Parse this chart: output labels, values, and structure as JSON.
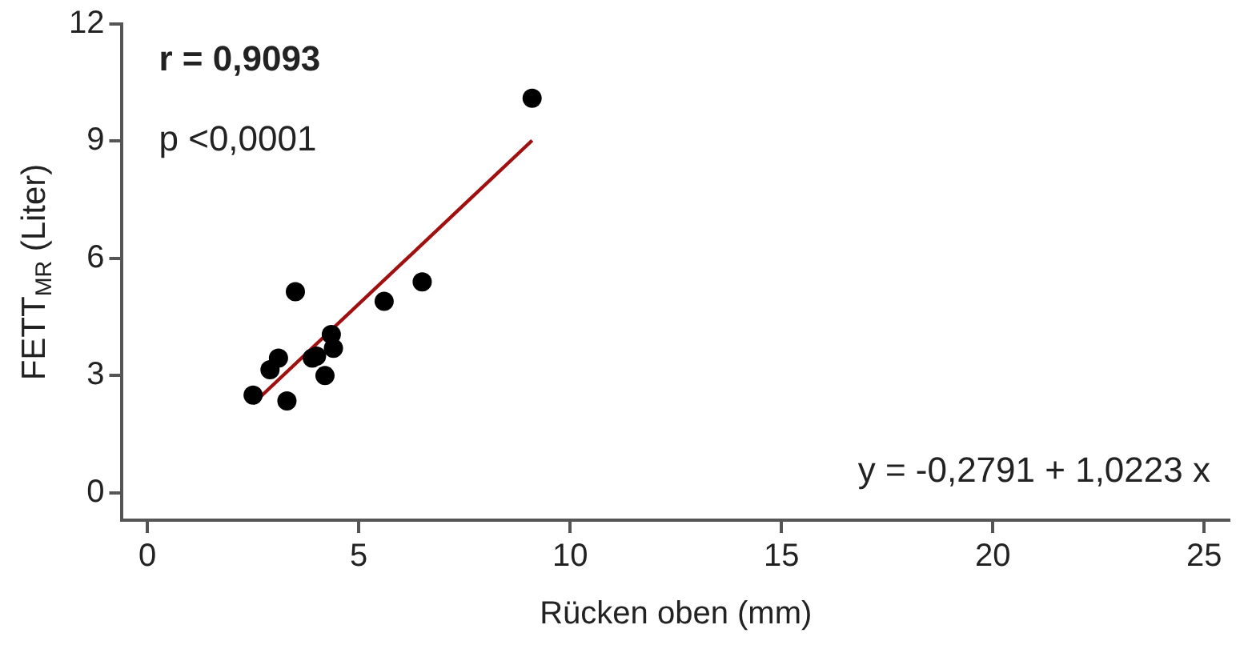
{
  "chart_data": {
    "type": "scatter",
    "xlabel": "Rücken oben (mm)",
    "ylabel": "FETT$_{MR}$ (Liter)",
    "annotations": [
      "r = 0,9093",
      "p <0,0001",
      "y = -0,2791 + 1,0223 x"
    ],
    "xlim": [
      -0.6,
      25.6
    ],
    "xticks": [
      0,
      5,
      10,
      15,
      20,
      25
    ],
    "ylim": [
      -0.7,
      12
    ],
    "yticks": [
      0,
      3,
      6,
      9,
      12
    ],
    "grid": false,
    "legend": false,
    "marker": "circle",
    "series": [
      {
        "color": "#000000",
        "x": [
          2.5,
          2.9,
          3.1,
          3.3,
          3.5,
          3.9,
          4.0,
          4.2,
          4.35,
          4.4,
          5.6,
          6.5,
          9.1
        ],
        "values": [
          2.5,
          3.15,
          3.45,
          2.35,
          5.15,
          3.45,
          3.5,
          3.0,
          4.05,
          3.7,
          4.9,
          5.4,
          10.1
        ]
      },
      {
        "type": "line",
        "marker": "none",
        "color": "#a01010",
        "x": [
          2.5,
          9.1
        ],
        "values": [
          2.28,
          9.02
        ]
      }
    ]
  }
}
